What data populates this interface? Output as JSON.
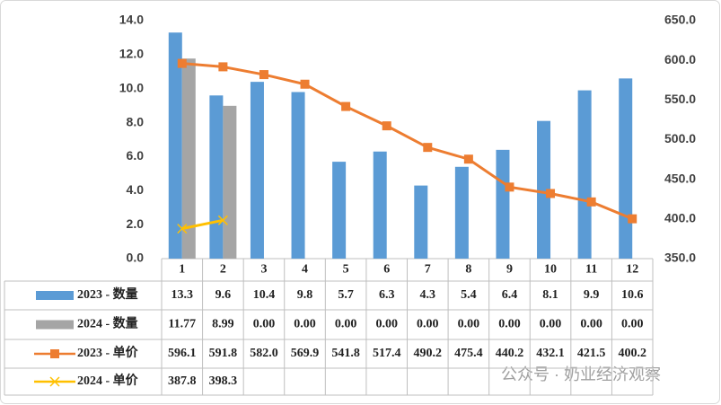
{
  "chart_data": {
    "type": "bar",
    "categories": [
      "1",
      "2",
      "3",
      "4",
      "5",
      "6",
      "7",
      "8",
      "9",
      "10",
      "11",
      "12"
    ],
    "series": [
      {
        "name": "2023 - 数量",
        "type": "bar",
        "color": "#5b9bd5",
        "values": [
          13.3,
          9.6,
          10.4,
          9.8,
          5.7,
          6.3,
          4.3,
          5.4,
          6.4,
          8.1,
          9.9,
          10.6
        ],
        "value_labels": [
          "13.3",
          "9.6",
          "10.4",
          "9.8",
          "5.7",
          "6.3",
          "4.3",
          "5.4",
          "6.4",
          "8.1",
          "9.9",
          "10.6"
        ]
      },
      {
        "name": "2024 - 数量",
        "type": "bar",
        "color": "#a5a5a5",
        "values": [
          11.77,
          8.99,
          0,
          0,
          0,
          0,
          0,
          0,
          0,
          0,
          0,
          0
        ],
        "value_labels": [
          "11.77",
          "8.99",
          "0.00",
          "0.00",
          "0.00",
          "0.00",
          "0.00",
          "0.00",
          "0.00",
          "0.00",
          "0.00",
          "0.00"
        ]
      },
      {
        "name": "2023 - 单价",
        "type": "line",
        "axis": "y2",
        "color": "#ed7d31",
        "marker": "square",
        "values": [
          596.1,
          591.8,
          582,
          569.9,
          541.8,
          517.4,
          490.2,
          475.4,
          440.2,
          432.1,
          421.5,
          400.2
        ],
        "value_labels": [
          "596.1",
          "591.8",
          "582.0",
          "569.9",
          "541.8",
          "517.4",
          "490.2",
          "475.4",
          "440.2",
          "432.1",
          "421.5",
          "400.2"
        ]
      },
      {
        "name": "2024 - 单价",
        "type": "line",
        "axis": "y2",
        "color": "#ffc000",
        "marker": "x",
        "values": [
          387.8,
          398.3,
          null,
          null,
          null,
          null,
          null,
          null,
          null,
          null,
          null,
          null
        ],
        "value_labels": [
          "387.8",
          "398.3",
          null,
          null,
          null,
          null,
          null,
          null,
          null,
          null,
          null,
          null
        ]
      }
    ],
    "ylim": [
      0,
      14
    ],
    "yticks": [
      {
        "value": 0,
        "label": "0.0"
      },
      {
        "value": 2,
        "label": "2.0"
      },
      {
        "value": 4,
        "label": "4.0"
      },
      {
        "value": 6,
        "label": "6.0"
      },
      {
        "value": 8,
        "label": "8.0"
      },
      {
        "value": 10,
        "label": "10.0"
      },
      {
        "value": 12,
        "label": "12.0"
      },
      {
        "value": 14,
        "label": "14.0"
      }
    ],
    "y2lim": [
      350,
      650
    ],
    "y2ticks": [
      {
        "value": 350,
        "label": "350.0"
      },
      {
        "value": 400,
        "label": "400.0"
      },
      {
        "value": 450,
        "label": "450.0"
      },
      {
        "value": 500,
        "label": "500.0"
      },
      {
        "value": 550,
        "label": "550.0"
      },
      {
        "value": 600,
        "label": "600.0"
      },
      {
        "value": 650,
        "label": "650.0"
      }
    ],
    "grid": false,
    "watermark": "公众号 · 奶业经济观察"
  }
}
